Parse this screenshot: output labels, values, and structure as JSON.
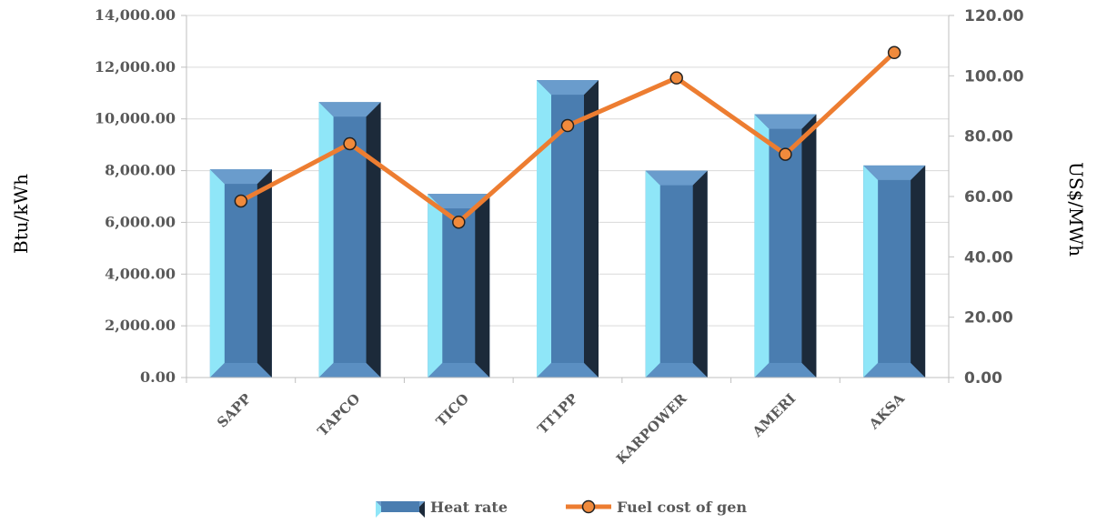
{
  "chart_data": {
    "type": "bar",
    "categories": [
      "SAPP",
      "TAPCO",
      "TICO",
      "TT1PP",
      "KARPOWER",
      "AMERI",
      "AKSA"
    ],
    "series": [
      {
        "name": "Heat rate",
        "type": "bar",
        "axis": "left",
        "values": [
          8050,
          10650,
          7100,
          11500,
          8000,
          10180,
          8200
        ]
      },
      {
        "name": "Fuel cost of gen",
        "type": "line",
        "axis": "right",
        "values": [
          58.5,
          77.5,
          51.5,
          83.5,
          99.3,
          74.0,
          107.7
        ]
      }
    ],
    "ylabel": "Btu/kWh",
    "y2label": "US$/MWh",
    "ylim": [
      0,
      14000
    ],
    "y2lim": [
      0,
      120
    ],
    "yticks": [
      "0.00",
      "2,000.00",
      "4,000.00",
      "6,000.00",
      "8,000.00",
      "10,000.00",
      "12,000.00",
      "14,000.00"
    ],
    "y2ticks": [
      "0.00",
      "20.00",
      "40.00",
      "60.00",
      "80.00",
      "100.00",
      "120.00"
    ],
    "legend_position": "bottom",
    "grid": true,
    "colors": {
      "bar_front": "#4a7db0",
      "bar_left_face": "#8fe6f8",
      "bar_right_face": "#1c2a3a",
      "bar_top": "#6a9ccc",
      "line": "#ed7d31",
      "marker_fill": "#f08a3c",
      "marker_stroke": "#222222",
      "gridline": "#d9d9d9"
    }
  }
}
